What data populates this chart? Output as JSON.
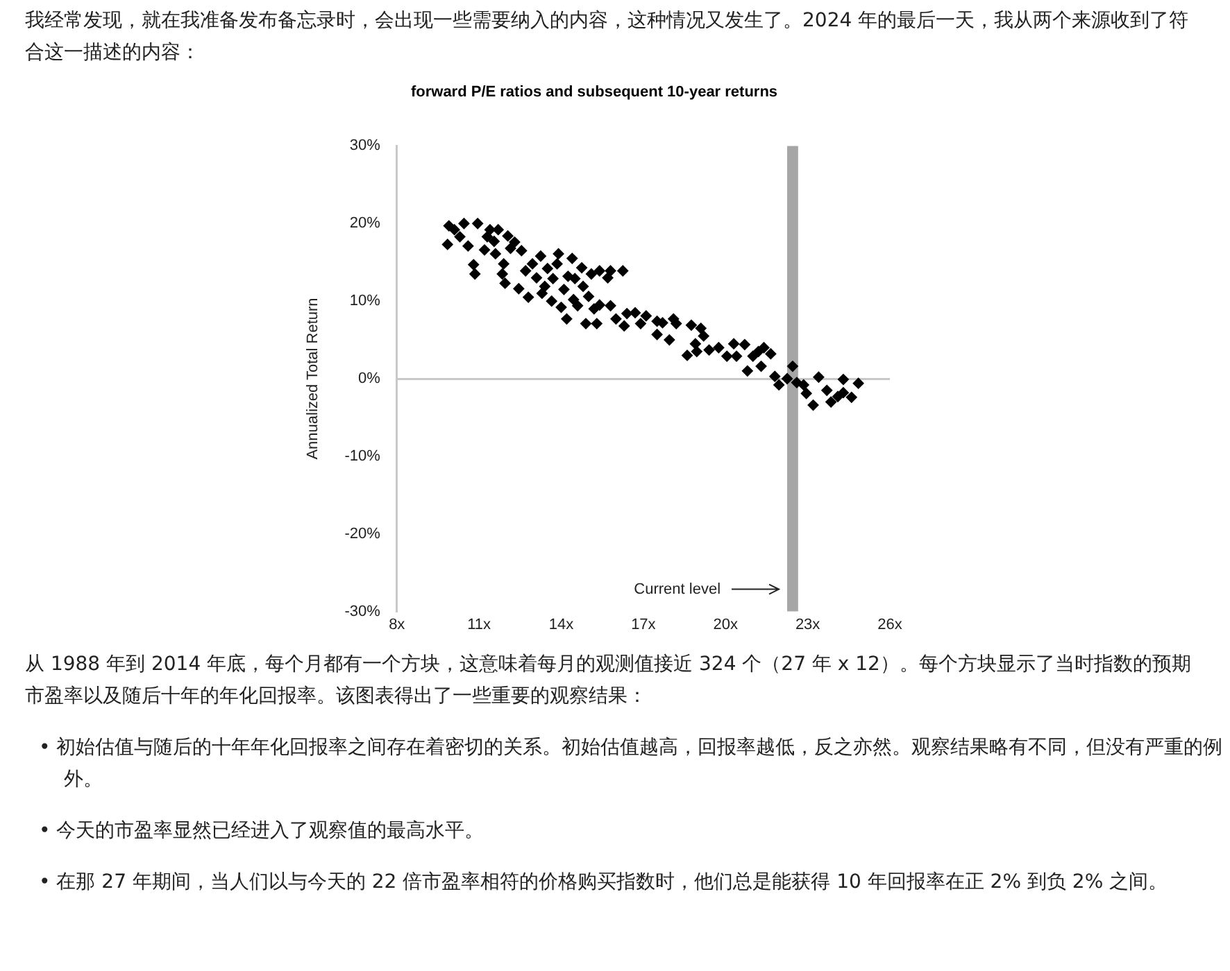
{
  "chart_data": {
    "type": "scatter",
    "title": "forward P/E ratios and subsequent 10-year returns",
    "ylabel": "Annualized Total Return",
    "annotations": [
      "我经常发现，就在我准备发布备忘录时，会出现一些需要纳入的内容，这种情况又发生了。2024 年的最后一天，我从两个来源收到了符合这一描述的内容：",
      "Current level",
      "从 1988 年到 2014 年底，每个月都有一个方块，这意味着每月的观测值接近 324 个（27 年 x 12）。每个方块显示了当时指数的预期市盈率以及随后十年的年化回报率。该图表得出了一些重要的观察结果：",
      "• 初始估值与随后的十年年化回报率之间存在着密切的关系。初始估值越高，回报率越低，反之亦然。观察结果略有不同，但没有严重的例外。",
      "• 今天的市盈率显然已经进入了观察值的最高水平。",
      "• 在那 27 年期间，当人们以与今天的 22 倍市盈率相符的价格购买指数时，他们总是能获得 10 年回报率在正 2% 到负 2% 之间。"
    ],
    "x": [
      9.85,
      9.9,
      10.1,
      10.45,
      10.3,
      10.6,
      10.8,
      10.85,
      10.95,
      11.2,
      11.3,
      11.4,
      11.55,
      11.7,
      11.6,
      11.85,
      11.95,
      11.9,
      12.05,
      12.15,
      12.3,
      12.45,
      12.55,
      12.7,
      12.8,
      12.95,
      13.1,
      13.25,
      13.3,
      13.4,
      13.5,
      13.65,
      13.7,
      13.85,
      13.9,
      14.0,
      14.1,
      14.2,
      14.25,
      14.4,
      14.45,
      14.5,
      14.6,
      14.75,
      14.8,
      14.9,
      15.0,
      15.1,
      15.2,
      15.3,
      15.4,
      15.4,
      15.7,
      15.8,
      15.8,
      16.0,
      16.25,
      16.3,
      16.4,
      16.7,
      16.9,
      17.1,
      17.5,
      17.5,
      17.7,
      17.95,
      18.1,
      18.2,
      18.6,
      18.75,
      18.9,
      18.95,
      19.1,
      19.2,
      19.4,
      19.75,
      20.05,
      20.3,
      20.4,
      20.7,
      20.8,
      21.0,
      21.2,
      21.3,
      21.4,
      21.65,
      21.8,
      21.95,
      22.25,
      22.45,
      22.6,
      22.85,
      22.95,
      23.2,
      23.4,
      23.7,
      23.85,
      24.1,
      24.3,
      24.3,
      24.6,
      24.85
    ],
    "values": [
      17.3,
      19.7,
      19.2,
      20,
      18.3,
      17.1,
      14.7,
      13.5,
      20,
      16.6,
      18.3,
      19.2,
      17.7,
      19.2,
      16.1,
      13.5,
      12.3,
      14.8,
      18.4,
      16.8,
      17.6,
      11.6,
      16.5,
      13.9,
      10.5,
      14.8,
      13.0,
      15.8,
      11.0,
      11.9,
      14.2,
      10.0,
      12.9,
      14.8,
      16.1,
      9.2,
      11.5,
      7.7,
      13.2,
      15.5,
      10.2,
      12.9,
      9.4,
      14.3,
      11.9,
      7.1,
      10.6,
      13.5,
      9.0,
      7.1,
      9.5,
      13.9,
      13.0,
      13.9,
      9.4,
      7.7,
      13.9,
      6.8,
      8.4,
      8.5,
      7.1,
      8.1,
      7.4,
      5.7,
      7.2,
      5.0,
      7.7,
      7.1,
      3.0,
      6.9,
      4.5,
      3.5,
      6.5,
      5.5,
      3.7,
      4.0,
      2.9,
      4.5,
      2.9,
      4.4,
      1.0,
      2.9,
      3.5,
      1.6,
      4.0,
      3.2,
      0.3,
      -0.8,
      0,
      1.6,
      -0.5,
      -0.8,
      -1.9,
      -3.4,
      0.2,
      -1.5,
      -3.0,
      -2.3,
      -0.1,
      -1.8,
      -2.4,
      -0.6
    ],
    "color": "#000000",
    "marker": "diamond",
    "xlim": [
      8,
      26
    ],
    "xticks": [
      {
        "value": 8,
        "label": "8x"
      },
      {
        "value": 11,
        "label": "11x"
      },
      {
        "value": 14,
        "label": "14x"
      },
      {
        "value": 17,
        "label": "17x"
      },
      {
        "value": 20,
        "label": "20x"
      },
      {
        "value": 23,
        "label": "23x"
      },
      {
        "value": 26,
        "label": "26x"
      }
    ],
    "ylim": [
      -30,
      30
    ],
    "yticks": [
      {
        "value": -30,
        "label": "-30%"
      },
      {
        "value": -20,
        "label": "-20%"
      },
      {
        "value": -10,
        "label": "-10%"
      },
      {
        "value": 0,
        "label": "0%"
      },
      {
        "value": 10,
        "label": "10%"
      },
      {
        "value": 20,
        "label": "20%"
      },
      {
        "value": 30,
        "label": "30%"
      }
    ],
    "bands": [
      {
        "axis": "x",
        "from": 22.25,
        "to": 22.65,
        "color": "#a6a6a6"
      }
    ],
    "legend": false
  }
}
